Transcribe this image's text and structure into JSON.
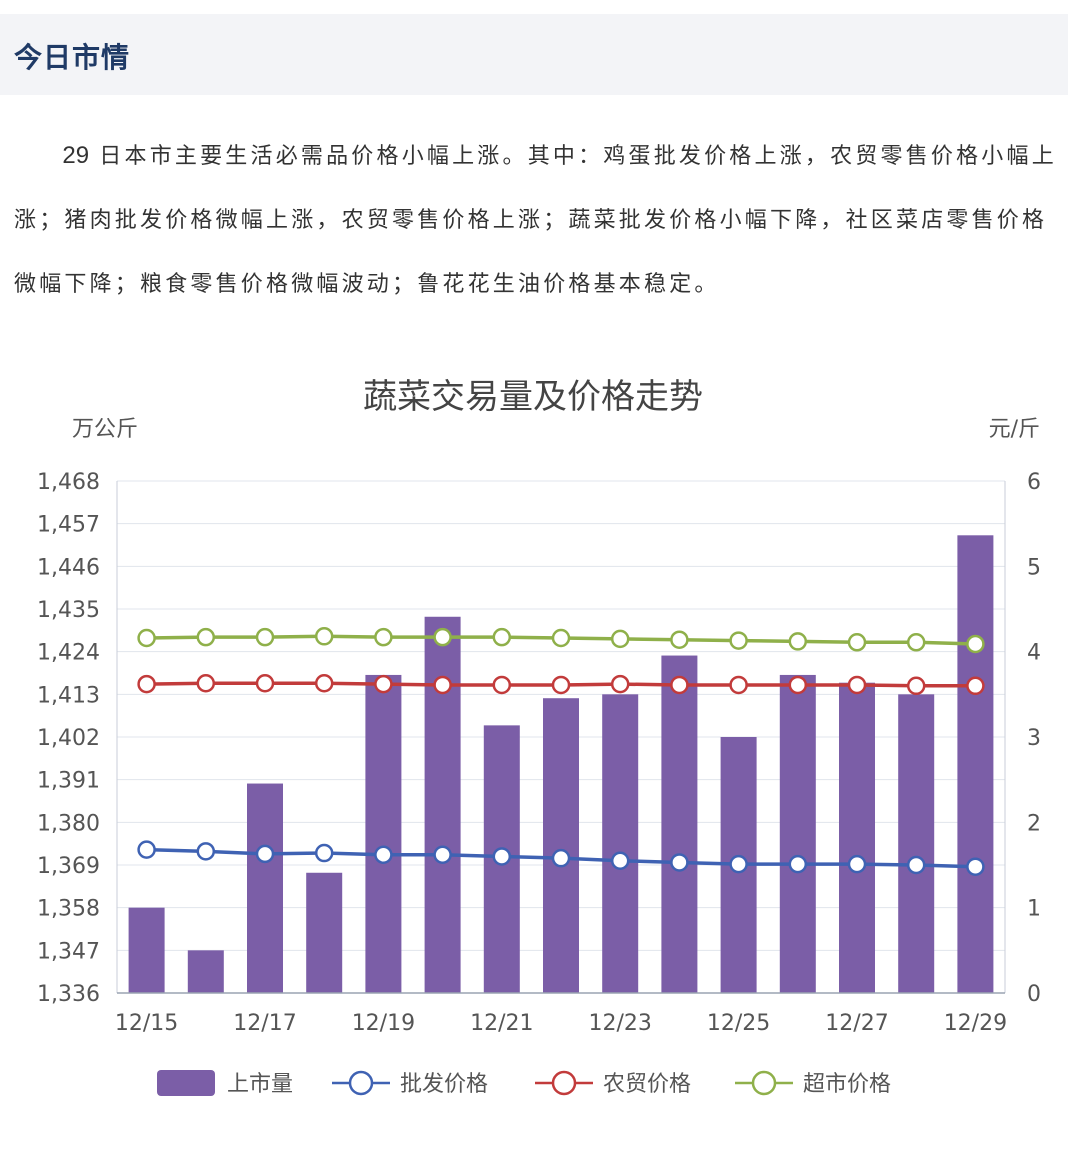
{
  "header": {
    "title": "今日市情"
  },
  "intro": {
    "date": "29",
    "text": "日本市主要生活必需品价格小幅上涨。其中：鸡蛋批发价格上涨，农贸零售价格小幅上涨；猪肉批发价格微幅上涨，农贸零售价格上涨；蔬菜批发价格小幅下降，社区菜店零售价格微幅下降；粮食零售价格微幅波动；鲁花花生油价格基本稳定。"
  },
  "chart_data": {
    "type": "bar",
    "title": "蔬菜交易量及价格走势",
    "y_left_unit": "万公斤",
    "y_right_unit": "元/斤",
    "y_left_ticks": [
      "1,336",
      "1,347",
      "1,358",
      "1,369",
      "1,380",
      "1,391",
      "1,402",
      "1,413",
      "1,424",
      "1,435",
      "1,446",
      "1,457",
      "1,468"
    ],
    "y_right_ticks": [
      "0",
      "1",
      "2",
      "3",
      "4",
      "5",
      "6"
    ],
    "y_left_range": [
      1336,
      1468
    ],
    "y_right_range": [
      0,
      6
    ],
    "x_tick_labels": [
      "12/15",
      "12/17",
      "12/19",
      "12/21",
      "12/23",
      "12/25",
      "12/27",
      "12/29"
    ],
    "categories": [
      "12/15",
      "12/16",
      "12/17",
      "12/18",
      "12/19",
      "12/20",
      "12/21",
      "12/22",
      "12/23",
      "12/24",
      "12/25",
      "12/26",
      "12/27",
      "12/28",
      "12/29"
    ],
    "series": [
      {
        "name": "上市量",
        "type": "bar",
        "axis": "left",
        "color": "#7b5ea7",
        "values": [
          1358,
          1347,
          1390,
          1367,
          1418,
          1433,
          1405,
          1412,
          1413,
          1423,
          1402,
          1418,
          1416,
          1413,
          1454
        ]
      },
      {
        "name": "批发价格",
        "type": "line",
        "axis": "right",
        "color": "#3f62b3",
        "values": [
          1.68,
          1.66,
          1.63,
          1.64,
          1.62,
          1.62,
          1.6,
          1.58,
          1.55,
          1.53,
          1.51,
          1.51,
          1.51,
          1.5,
          1.48
        ]
      },
      {
        "name": "农贸价格",
        "type": "line",
        "axis": "right",
        "color": "#c23b3b",
        "values": [
          3.62,
          3.63,
          3.63,
          3.63,
          3.62,
          3.61,
          3.61,
          3.61,
          3.62,
          3.61,
          3.61,
          3.61,
          3.61,
          3.6,
          3.6
        ]
      },
      {
        "name": "超市价格",
        "type": "line",
        "axis": "right",
        "color": "#8fb04a",
        "values": [
          4.16,
          4.17,
          4.17,
          4.18,
          4.17,
          4.17,
          4.17,
          4.16,
          4.15,
          4.14,
          4.13,
          4.12,
          4.11,
          4.11,
          4.09
        ]
      }
    ],
    "grid": true,
    "legend": "bottom"
  }
}
